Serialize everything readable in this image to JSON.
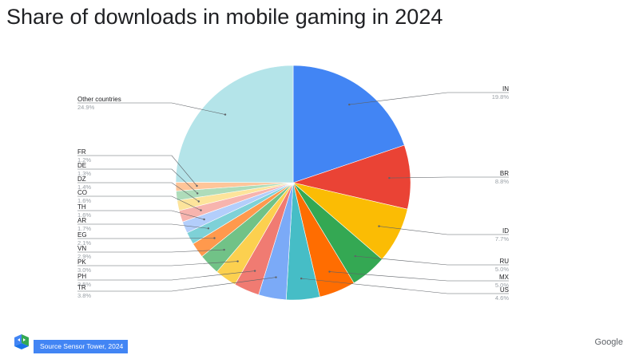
{
  "page": {
    "title": "Share of downloads in mobile gaming in 2024",
    "source": "Source  Sensor Tower, 2024",
    "brand": "Google"
  },
  "colors": {
    "IN": "#4285f4",
    "BR": "#ea4335",
    "ID": "#fbbc04",
    "RU": "#34a853",
    "MX": "#ff6d01",
    "US": "#46bdc6",
    "TR": "#7baaf7",
    "PH": "#f07b72",
    "PK": "#fcd04f",
    "VN": "#71c287",
    "EG": "#ff994d",
    "AR": "#7ed1d7",
    "TH": "#b3cefb",
    "CO": "#f7b4ae",
    "DZ": "#fde49b",
    "DE": "#aedcba",
    "FR": "#ffc599",
    "Other countries": "#b4e4e9"
  },
  "chart_data": {
    "type": "pie",
    "title": "Share of downloads in mobile gaming in 2024",
    "slices": [
      {
        "label": "IN",
        "value": 19.8,
        "value_label": "19.8%"
      },
      {
        "label": "BR",
        "value": 8.8,
        "value_label": "8.8%"
      },
      {
        "label": "ID",
        "value": 7.7,
        "value_label": "7.7%"
      },
      {
        "label": "RU",
        "value": 5.0,
        "value_label": "5.0%"
      },
      {
        "label": "MX",
        "value": 5.0,
        "value_label": "5.0%"
      },
      {
        "label": "US",
        "value": 4.6,
        "value_label": "4.6%"
      },
      {
        "label": "TR",
        "value": 3.8,
        "value_label": "3.8%"
      },
      {
        "label": "PH",
        "value": 3.5,
        "value_label": "3.5%"
      },
      {
        "label": "PK",
        "value": 3.0,
        "value_label": "3.0%"
      },
      {
        "label": "VN",
        "value": 2.9,
        "value_label": "2.9%"
      },
      {
        "label": "EG",
        "value": 2.1,
        "value_label": "2.1%"
      },
      {
        "label": "AR",
        "value": 1.7,
        "value_label": "1.7%"
      },
      {
        "label": "TH",
        "value": 1.6,
        "value_label": "1.6%"
      },
      {
        "label": "CO",
        "value": 1.6,
        "value_label": "1.6%"
      },
      {
        "label": "DZ",
        "value": 1.4,
        "value_label": "1.4%"
      },
      {
        "label": "DE",
        "value": 1.3,
        "value_label": "1.3%"
      },
      {
        "label": "FR",
        "value": 1.2,
        "value_label": "1.2%"
      },
      {
        "label": "Other countries",
        "value": 24.9,
        "value_label": "24.9%"
      }
    ]
  }
}
